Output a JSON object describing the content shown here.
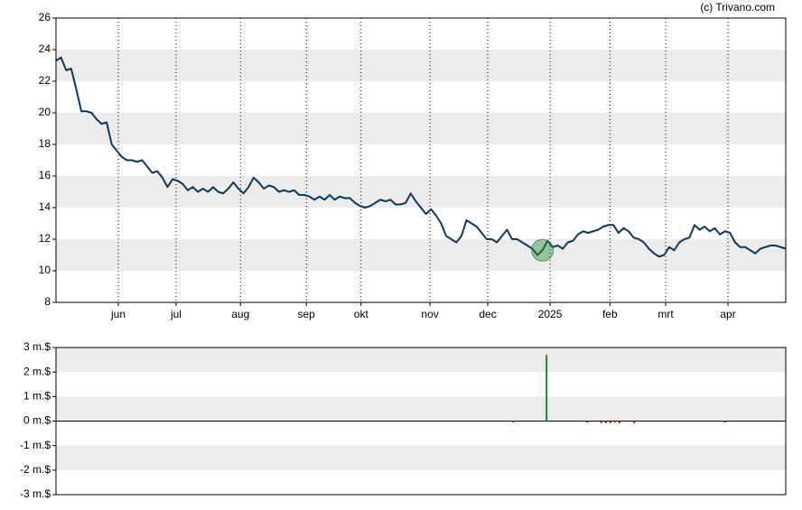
{
  "source": "(c) Trivano.com",
  "chart_data": [
    {
      "type": "line",
      "color": "#0d3a5c",
      "bands": true,
      "highlight": 96,
      "xlim": [
        0,
        144
      ],
      "xticks": [
        {
          "value": 12.3,
          "label": "jun"
        },
        {
          "value": 23.7,
          "label": "jul"
        },
        {
          "value": 36.4,
          "label": "aug"
        },
        {
          "value": 49.4,
          "label": "sep"
        },
        {
          "value": 60.2,
          "label": "okt"
        },
        {
          "value": 73.8,
          "label": "nov"
        },
        {
          "value": 85.2,
          "label": "dec"
        },
        {
          "value": 97.5,
          "label": "2025"
        },
        {
          "value": 109.3,
          "label": "feb"
        },
        {
          "value": 120.3,
          "label": "mrt"
        },
        {
          "value": 132.6,
          "label": "apr"
        }
      ],
      "ylim": [
        8,
        26
      ],
      "yticks": [
        8,
        10,
        12,
        14,
        16,
        18,
        20,
        22,
        24,
        26
      ],
      "values": [
        23.3,
        23.5,
        22.7,
        22.8,
        21.5,
        20.1,
        20.1,
        20.0,
        19.6,
        19.3,
        19.4,
        18.0,
        17.6,
        17.2,
        17.0,
        17.0,
        16.9,
        17.0,
        16.6,
        16.2,
        16.3,
        15.9,
        15.3,
        15.8,
        15.7,
        15.5,
        15.1,
        15.3,
        15.0,
        15.2,
        15.0,
        15.3,
        15.0,
        14.9,
        15.2,
        15.6,
        15.2,
        14.9,
        15.3,
        15.9,
        15.6,
        15.2,
        15.4,
        15.3,
        15.0,
        15.1,
        15.0,
        15.1,
        14.8,
        14.8,
        14.7,
        14.5,
        14.7,
        14.5,
        14.8,
        14.5,
        14.7,
        14.6,
        14.6,
        14.3,
        14.1,
        14.0,
        14.1,
        14.3,
        14.5,
        14.4,
        14.5,
        14.2,
        14.2,
        14.3,
        14.9,
        14.4,
        14.0,
        13.6,
        13.9,
        13.5,
        13.0,
        12.2,
        12.0,
        11.8,
        12.2,
        13.2,
        13.0,
        12.8,
        12.4,
        12.0,
        12.0,
        11.8,
        12.2,
        12.6,
        12.0,
        12.0,
        11.8,
        11.6,
        11.4,
        11.0,
        11.3,
        11.9,
        11.5,
        11.6,
        11.4,
        11.8,
        11.9,
        12.3,
        12.5,
        12.4,
        12.5,
        12.6,
        12.8,
        12.9,
        12.9,
        12.4,
        12.7,
        12.5,
        12.1,
        12.0,
        11.8,
        11.4,
        11.1,
        10.9,
        11.0,
        11.5,
        11.3,
        11.8,
        12.0,
        12.1,
        12.9,
        12.6,
        12.8,
        12.5,
        12.7,
        12.3,
        12.5,
        12.4,
        11.8,
        11.5,
        11.5,
        11.3,
        11.1,
        11.4,
        11.5,
        11.6,
        11.6,
        11.5,
        11.4
      ]
    },
    {
      "type": "bar",
      "bands": true,
      "xlim": [
        0,
        144
      ],
      "ylim": [
        -3,
        3
      ],
      "yticks": [
        {
          "value": -3,
          "label": "-3 m.$"
        },
        {
          "value": -2,
          "label": "-2 m.$"
        },
        {
          "value": -1,
          "label": "-1 m.$"
        },
        {
          "value": 0,
          "label": "0 m.$"
        },
        {
          "value": 1,
          "label": "1 m.$"
        },
        {
          "value": 2,
          "label": "2 m.$"
        },
        {
          "value": 3,
          "label": "3 m.$"
        }
      ],
      "x": [
        90.2,
        96.8,
        104.8,
        107.6,
        108.5,
        109.4,
        110.3,
        111.2,
        114.1,
        132.1
      ],
      "values": [
        -0.05,
        2.7,
        -0.05,
        -0.08,
        -0.08,
        -0.08,
        -0.05,
        -0.08,
        -0.08,
        -0.05
      ],
      "colors": [
        "#c00000",
        "#1a8a2a",
        "#c00000",
        "#c00000",
        "#c00000",
        "#c00000",
        "#c00000",
        "#c00000",
        "#c00000",
        "#c00000"
      ]
    }
  ]
}
